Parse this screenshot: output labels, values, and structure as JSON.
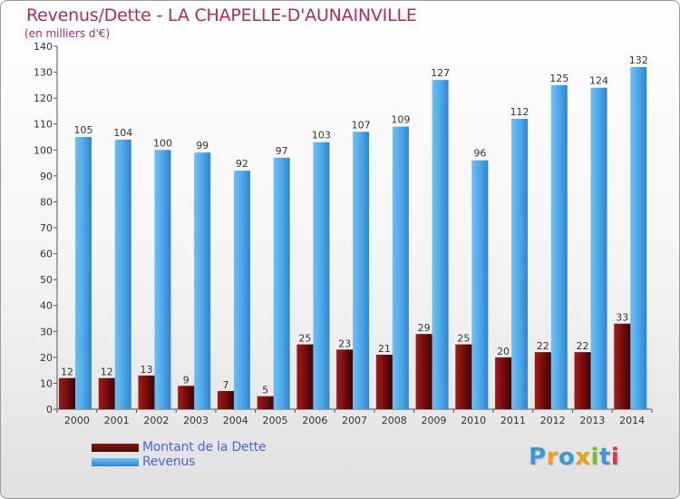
{
  "header": {
    "title": "Revenus/Dette - LA CHAPELLE-D'AUNAINVILLE",
    "subtitle": "(en milliers d'€)"
  },
  "legend": {
    "items": [
      {
        "label": "Montant de la Dette",
        "color": "#6e0b0b"
      },
      {
        "label": "Revenus",
        "color": "#4ea7e8"
      }
    ]
  },
  "logo": {
    "text": "Proxiti",
    "letters": [
      {
        "ch": "P",
        "color": "#3a9ad9"
      },
      {
        "ch": "r",
        "color": "#f0a01e"
      },
      {
        "ch": "o",
        "color": "#3a9ad9"
      },
      {
        "ch": "x",
        "color": "#e8a21a"
      },
      {
        "ch": "i",
        "color": "#7bb92a"
      },
      {
        "ch": "t",
        "color": "#3a9ad9"
      },
      {
        "ch": "i",
        "color": "#d9354a"
      }
    ]
  },
  "chart_data": {
    "type": "bar",
    "title": "Revenus/Dette - LA CHAPELLE-D'AUNAINVILLE",
    "subtitle": "(en milliers d'€)",
    "categories": [
      "2000",
      "2001",
      "2002",
      "2003",
      "2004",
      "2005",
      "2006",
      "2007",
      "2008",
      "2009",
      "2010",
      "2011",
      "2012",
      "2013",
      "2014"
    ],
    "series": [
      {
        "name": "Montant de la Dette",
        "color": "#6e0b0b",
        "values": [
          12,
          12,
          13,
          9,
          7,
          5,
          25,
          23,
          21,
          29,
          25,
          20,
          22,
          22,
          33
        ]
      },
      {
        "name": "Revenus",
        "color": "#4ea7e8",
        "values": [
          105,
          104,
          100,
          99,
          92,
          97,
          103,
          107,
          109,
          127,
          96,
          112,
          125,
          124,
          132
        ]
      }
    ],
    "ylim": [
      0,
      140
    ],
    "yticks": [
      0,
      10,
      20,
      30,
      40,
      50,
      60,
      70,
      80,
      90,
      100,
      110,
      120,
      130,
      140
    ],
    "grid": false,
    "legend_position": "bottom-left"
  }
}
